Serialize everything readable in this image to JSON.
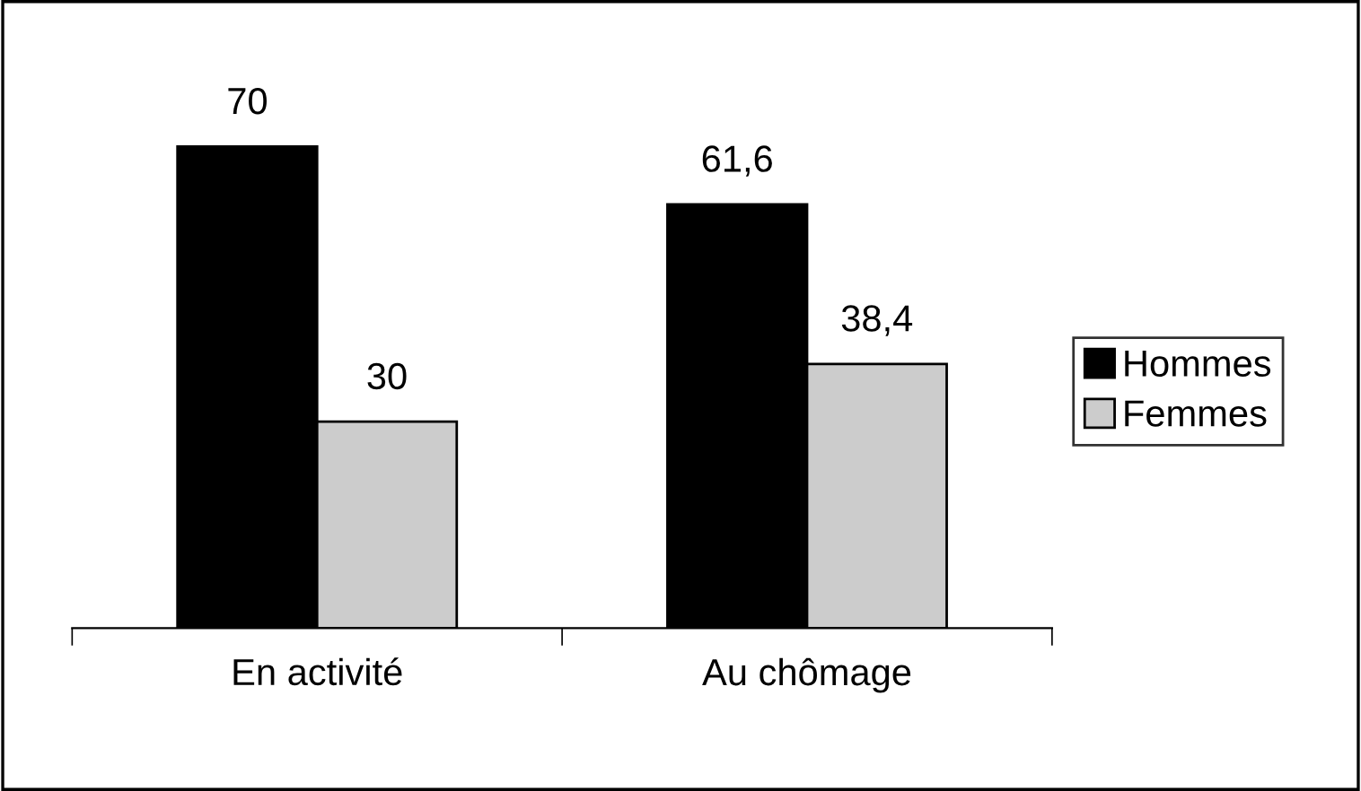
{
  "chart_data": {
    "type": "bar",
    "categories": [
      "En activité",
      "Au chômage"
    ],
    "series": [
      {
        "name": "Hommes",
        "color": "#000000",
        "values": [
          70,
          61.6
        ],
        "value_labels": [
          "70",
          "61,6"
        ]
      },
      {
        "name": "Femmes",
        "color": "#cccccc",
        "values": [
          30,
          38.4
        ],
        "value_labels": [
          "30",
          "38,4"
        ]
      }
    ],
    "legend": "right",
    "grid": false
  }
}
